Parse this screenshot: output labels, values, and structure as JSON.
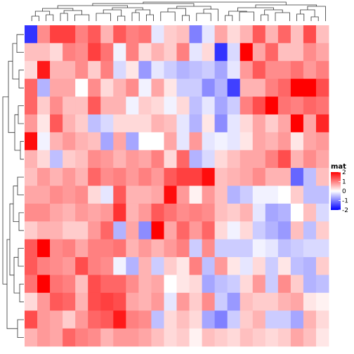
{
  "chart_data": {
    "type": "heatmap",
    "rows": 18,
    "cols": 24,
    "values": [
      [
        -1.6,
        0.9,
        1.5,
        1.5,
        1.0,
        1.3,
        0.6,
        1.3,
        1.0,
        1.1,
        -0.2,
        0.4,
        0.5,
        -1.0,
        -0.2,
        0.7,
        0.3,
        0.6,
        1.3,
        0.6,
        1.2,
        0.5,
        1.4,
        0.5
      ],
      [
        0.5,
        0.5,
        0.3,
        1.0,
        0.9,
        1.5,
        1.1,
        -0.1,
        1.0,
        0.3,
        0.6,
        0.4,
        1.0,
        -0.2,
        0.3,
        -1.6,
        -0.3,
        2.5,
        0.7,
        1.2,
        0.5,
        0.5,
        0.9,
        0.7
      ],
      [
        0.3,
        1.8,
        0.6,
        0.6,
        0.9,
        0.4,
        1.0,
        -0.3,
        0.2,
        -0.8,
        -0.2,
        -0.4,
        -0.6,
        -0.5,
        -0.4,
        -0.7,
        -0.2,
        0.8,
        1.3,
        0.9,
        0.9,
        1.1,
        0.8,
        1.0
      ],
      [
        1.2,
        -0.6,
        0.7,
        0.7,
        0.0,
        0.9,
        0.3,
        0.6,
        0.9,
        -0.1,
        0.7,
        0.2,
        -0.4,
        -0.4,
        -0.9,
        -0.6,
        -1.5,
        0.6,
        0.6,
        1.0,
        1.2,
        2.0,
        2.3,
        1.4
      ],
      [
        1.2,
        0.4,
        0.9,
        0.5,
        0.5,
        1.3,
        0.6,
        0.6,
        -0.1,
        0.4,
        0.3,
        -0.1,
        0.3,
        -0.5,
        -0.2,
        -0.7,
        -0.4,
        1.0,
        1.4,
        2.5,
        1.1,
        1.0,
        1.2,
        1.1
      ],
      [
        0.8,
        0.2,
        1.3,
        0.6,
        0.4,
        -0.5,
        -0.3,
        0.3,
        0.3,
        0.3,
        0.6,
        0.5,
        -0.2,
        -0.6,
        0.2,
        -0.9,
        -0.2,
        0.3,
        0.7,
        0.4,
        0.7,
        2.6,
        0.7,
        1.7
      ],
      [
        1.9,
        -0.1,
        0.6,
        0.8,
        0.6,
        0.5,
        -0.7,
        0.7,
        -0.7,
        0.0,
        0.0,
        0.7,
        -0.2,
        0.8,
        -0.2,
        -0.1,
        -0.2,
        0.2,
        0.7,
        0.6,
        0.8,
        0.2,
        0.7,
        0.8
      ],
      [
        0.6,
        0.3,
        -0.5,
        0.4,
        0.5,
        0.9,
        0.8,
        0.6,
        0.8,
        0.7,
        1.0,
        0.3,
        1.2,
        -0.6,
        -0.3,
        0.3,
        0.5,
        0.7,
        0.7,
        1.0,
        1.4,
        0.6,
        0.9,
        0.7
      ],
      [
        0.5,
        0.8,
        0.6,
        0.8,
        0.6,
        1.2,
        0.9,
        1.0,
        0.8,
        1.0,
        0.8,
        1.3,
        1.5,
        1.5,
        1.9,
        0.5,
        0.6,
        0.7,
        0.9,
        0.6,
        0.6,
        -1.2,
        -0.5,
        0.5
      ],
      [
        0.7,
        0.7,
        0.9,
        0.8,
        0.9,
        0.3,
        -0.2,
        1.3,
        0.6,
        0.6,
        0.7,
        1.9,
        0.8,
        0.1,
        0.8,
        0.5,
        -0.6,
        -0.4,
        -0.1,
        -0.1,
        0.0,
        0.4,
        -0.5,
        -0.5
      ],
      [
        0.9,
        0.9,
        0.7,
        0.6,
        0.8,
        0.7,
        0.8,
        1.6,
        0.6,
        0.8,
        1.3,
        1.1,
        0.9,
        1.0,
        0.9,
        0.5,
        0.4,
        0.6,
        -0.2,
        -0.7,
        -0.6,
        0.0,
        0.5,
        -0.3
      ],
      [
        0.4,
        0.6,
        0.6,
        0.4,
        0.4,
        0.8,
        1.2,
        -0.6,
        0.7,
        -0.9,
        2.0,
        0.7,
        1.2,
        0.8,
        1.2,
        0.3,
        -0.1,
        0.3,
        -0.4,
        -0.6,
        -0.8,
        0.5,
        -0.5,
        0.4
      ],
      [
        1.3,
        2.3,
        0.9,
        1.0,
        0.7,
        1.0,
        1.0,
        1.1,
        0.6,
        0.8,
        0.6,
        0.8,
        1.0,
        -0.4,
        0.9,
        -0.4,
        -0.4,
        -0.4,
        -0.1,
        -0.2,
        -0.5,
        -0.4,
        -0.3,
        -0.3
      ],
      [
        1.3,
        1.0,
        0.9,
        0.8,
        1.4,
        1.0,
        0.9,
        -0.1,
        -0.6,
        0.6,
        -0.4,
        0.4,
        0.2,
        1.0,
        -0.5,
        0.8,
        0.2,
        -0.2,
        0.3,
        -0.4,
        0.2,
        -0.5,
        -0.6,
        0.4
      ],
      [
        1.1,
        2.0,
        1.1,
        1.0,
        0.5,
        1.4,
        1.2,
        1.2,
        0.9,
        0.6,
        0.7,
        0.0,
        0.2,
        0.3,
        -0.7,
        -0.5,
        -0.4,
        0.3,
        0.8,
        -0.4,
        0.9,
        0.4,
        -0.6,
        -0.5
      ],
      [
        0.3,
        0.8,
        1.3,
        1.2,
        0.6,
        1.4,
        1.5,
        1.4,
        0.7,
        0.6,
        0.8,
        -0.2,
        0.8,
        0.4,
        0.9,
        -0.4,
        -0.8,
        0.5,
        0.4,
        0.4,
        0.6,
        0.7,
        0.2,
        0.1
      ],
      [
        1.4,
        0.8,
        0.7,
        0.4,
        0.8,
        1.2,
        1.3,
        1.8,
        1.0,
        0.9,
        -0.5,
        0.3,
        0.5,
        0.3,
        -0.7,
        -1.0,
        -0.4,
        0.4,
        0.6,
        -0.4,
        -0.4,
        -0.7,
        0.6,
        0.3
      ],
      [
        0.6,
        0.8,
        0.7,
        1.2,
        1.0,
        0.9,
        0.6,
        0.8,
        0.8,
        0.7,
        0.5,
        0.3,
        0.4,
        0.1,
        0.5,
        0.4,
        0.3,
        0.5,
        0.4,
        0.3,
        0.4,
        0.7,
        0.5,
        0.2
      ]
    ],
    "color_scale": {
      "min": -2,
      "max": 2,
      "low_color": "#0000ff",
      "mid_color": "#ffffff",
      "high_color": "#ff0000"
    },
    "legend": {
      "title": "mat",
      "ticks": [
        2,
        1,
        0,
        -1,
        -2
      ],
      "tick_labels": [
        "2",
        "1",
        "0",
        "-1",
        "-2"
      ],
      "placement": "right"
    },
    "dendrograms": {
      "rows": "left",
      "columns": "top"
    }
  }
}
